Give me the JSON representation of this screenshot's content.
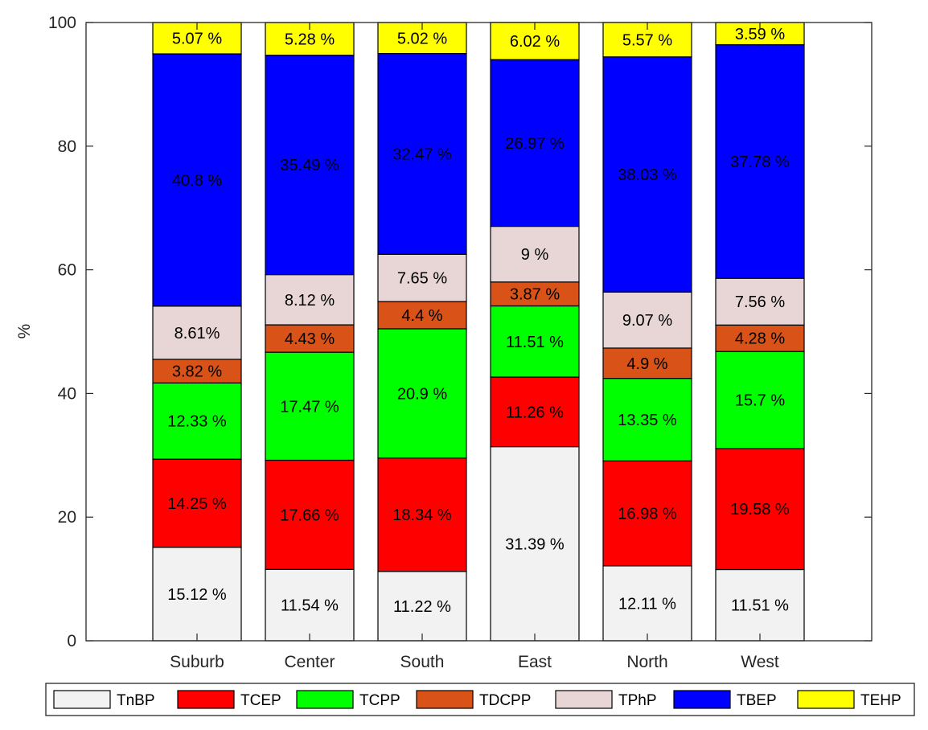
{
  "chart_data": {
    "type": "bar",
    "stacked": true,
    "categories": [
      "Suburb",
      "Center",
      "South",
      "East",
      "North",
      "West"
    ],
    "series": [
      {
        "name": "TnBP",
        "color": "#f2f2f2",
        "values": [
          15.12,
          11.54,
          11.22,
          31.39,
          12.11,
          11.51
        ],
        "labels": [
          "15.12 %",
          "11.54 %",
          "11.22 %",
          "31.39 %",
          "12.11 %",
          "11.51 %"
        ]
      },
      {
        "name": "TCEP",
        "color": "#ff0000",
        "values": [
          14.25,
          17.66,
          18.34,
          11.26,
          16.98,
          19.58
        ],
        "labels": [
          "14.25 %",
          "17.66 %",
          "18.34 %",
          "11.26 %",
          "16.98 %",
          "19.58 %"
        ]
      },
      {
        "name": "TCPP",
        "color": "#00ff00",
        "values": [
          12.33,
          17.47,
          20.9,
          11.51,
          13.35,
          15.7
        ],
        "labels": [
          "12.33 %",
          "17.47 %",
          "20.9 %",
          "11.51 %",
          "13.35 %",
          "15.7 %"
        ]
      },
      {
        "name": "TDCPP",
        "color": "#d95319",
        "values": [
          3.82,
          4.43,
          4.4,
          3.87,
          4.9,
          4.28
        ],
        "labels": [
          "3.82 %",
          "4.43 %",
          "4.4 %",
          "3.87 %",
          "4.9 %",
          "4.28 %"
        ]
      },
      {
        "name": "TPhP",
        "color": "#e8d6d6",
        "values": [
          8.61,
          8.12,
          7.65,
          9.0,
          9.07,
          7.56
        ],
        "labels": [
          "8.61%",
          "8.12 %",
          "7.65 %",
          "9 %",
          "9.07 %",
          "7.56 %"
        ]
      },
      {
        "name": "TBEP",
        "color": "#0000ff",
        "values": [
          40.8,
          35.49,
          32.47,
          26.97,
          38.03,
          37.78
        ],
        "labels": [
          "40.8 %",
          "35.49 %",
          "32.47 %",
          "26.97 %",
          "38.03 %",
          "37.78 %"
        ]
      },
      {
        "name": "TEHP",
        "color": "#ffff00",
        "values": [
          5.07,
          5.28,
          5.02,
          6.02,
          5.57,
          3.59
        ],
        "labels": [
          "5.07 %",
          "5.28 %",
          "5.02 %",
          "6.02 %",
          "5.57 %",
          "3.59 %"
        ]
      }
    ],
    "title": "",
    "xlabel": "",
    "ylabel": "%",
    "ylim": [
      0,
      100
    ],
    "yticks": [
      0,
      20,
      40,
      60,
      80,
      100
    ],
    "grid": false,
    "legend_position": "bottom"
  }
}
